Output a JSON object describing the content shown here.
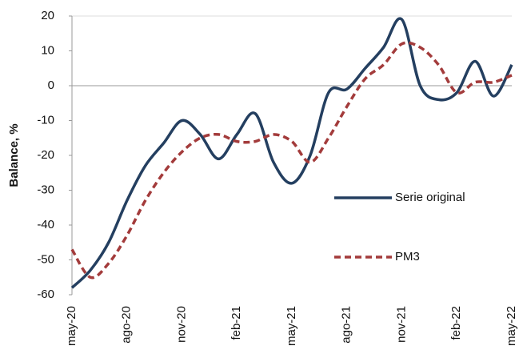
{
  "chart_data": {
    "type": "line",
    "y_label": "Balance, %",
    "categories": [
      "may-20",
      null,
      null,
      "ago-20",
      null,
      null,
      "nov-20",
      null,
      null,
      "feb-21",
      null,
      null,
      "may-21",
      null,
      null,
      "ago-21",
      null,
      null,
      "nov-21",
      null,
      null,
      "feb-22",
      null,
      null,
      "may-22"
    ],
    "series": [
      {
        "name": "Serie original",
        "color": "#243f60",
        "dash": false,
        "values": [
          -58,
          -53,
          -45,
          -33,
          -23,
          -16.5,
          -10,
          -14,
          -21,
          -14,
          -8,
          -22,
          -28,
          -20,
          -2,
          -1,
          5,
          11,
          19,
          0,
          -4,
          -2,
          7,
          -3,
          6
        ]
      },
      {
        "name": "PM3",
        "color": "#a33b3b",
        "dash": true,
        "values": [
          -47,
          -55,
          -51,
          -43,
          -33,
          -25,
          -19,
          -15,
          -14,
          -16,
          -16,
          -14,
          -16,
          -22,
          -15,
          -6,
          2,
          6,
          12,
          11,
          6,
          -2,
          1,
          1,
          3
        ]
      }
    ],
    "ylim": [
      -60,
      20
    ],
    "yticks": [
      -60,
      -50,
      -40,
      -30,
      -20,
      -10,
      0,
      10,
      20
    ],
    "grid": false,
    "legend": "right"
  }
}
